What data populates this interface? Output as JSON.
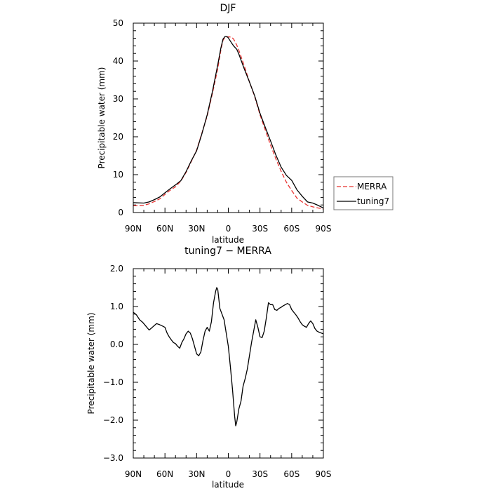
{
  "colors": {
    "background": "#ffffff",
    "axes": "#000000",
    "merra": "#e8312f",
    "tuning7": "#000000"
  },
  "chart_data": [
    {
      "type": "line",
      "title": "DJF",
      "xlabel": "latitude",
      "ylabel": "Precipitable water (mm)",
      "xlim": [
        -90,
        90
      ],
      "ylim": [
        0,
        50
      ],
      "x_ticks": [
        {
          "value": -90,
          "label": "90N"
        },
        {
          "value": -60,
          "label": "60N"
        },
        {
          "value": -30,
          "label": "30N"
        },
        {
          "value": 0,
          "label": "0"
        },
        {
          "value": 30,
          "label": "30S"
        },
        {
          "value": 60,
          "label": "60S"
        },
        {
          "value": 90,
          "label": "90S"
        }
      ],
      "y_ticks": [
        {
          "value": 0,
          "label": "0"
        },
        {
          "value": 10,
          "label": "10"
        },
        {
          "value": 20,
          "label": "20"
        },
        {
          "value": 30,
          "label": "30"
        },
        {
          "value": 40,
          "label": "40"
        },
        {
          "value": 50,
          "label": "50"
        }
      ],
      "legend": {
        "placement": "right",
        "entries": [
          "MERRA",
          "tuning7"
        ]
      },
      "series": [
        {
          "name": "MERRA",
          "color": "#e8312f",
          "dash": true,
          "x": [
            -90,
            -80,
            -75,
            -70,
            -65,
            -60,
            -55,
            -50,
            -45,
            -40,
            -35,
            -30,
            -25,
            -20,
            -15,
            -10,
            -7,
            -5,
            -3,
            0,
            3,
            5,
            8,
            10,
            15,
            20,
            25,
            30,
            35,
            40,
            45,
            50,
            55,
            60,
            65,
            70,
            75,
            80,
            85,
            90
          ],
          "y": [
            1.8,
            1.9,
            2.3,
            2.9,
            3.6,
            4.8,
            5.9,
            6.8,
            8.3,
            10.6,
            13.5,
            16.5,
            21.0,
            25.5,
            31.5,
            38.0,
            43.0,
            45.5,
            46.3,
            46.4,
            46.3,
            45.8,
            44.2,
            42.8,
            38.8,
            34.5,
            30.6,
            25.8,
            21.8,
            17.8,
            14.2,
            10.9,
            8.0,
            5.8,
            3.8,
            2.8,
            1.9,
            1.5,
            1.2,
            0.9
          ]
        },
        {
          "name": "tuning7",
          "color": "#000000",
          "dash": false,
          "x": [
            -90,
            -80,
            -75,
            -70,
            -65,
            -60,
            -55,
            -50,
            -45,
            -40,
            -35,
            -30,
            -25,
            -20,
            -15,
            -10,
            -7,
            -5,
            -3,
            -1,
            0,
            3,
            5,
            8,
            10,
            15,
            20,
            25,
            30,
            35,
            40,
            45,
            50,
            55,
            60,
            65,
            70,
            75,
            80,
            85,
            90
          ],
          "y": [
            2.6,
            2.5,
            2.8,
            3.4,
            4.1,
            5.2,
            6.3,
            7.3,
            8.4,
            10.8,
            13.7,
            16.3,
            20.8,
            25.8,
            32.0,
            39.0,
            43.5,
            45.8,
            46.5,
            46.4,
            46.1,
            44.8,
            44.0,
            43.1,
            41.8,
            38.0,
            34.5,
            30.8,
            26.2,
            22.5,
            18.9,
            15.2,
            12.0,
            9.8,
            8.5,
            6.0,
            4.3,
            2.8,
            2.5,
            1.9,
            1.2
          ]
        }
      ]
    },
    {
      "type": "line",
      "title": "tuning7 − MERRA",
      "xlabel": "latitude",
      "ylabel": "Precipitable water (mm)",
      "xlim": [
        -90,
        90
      ],
      "ylim": [
        -3.0,
        2.0
      ],
      "x_ticks": [
        {
          "value": -90,
          "label": "90N"
        },
        {
          "value": -60,
          "label": "60N"
        },
        {
          "value": -30,
          "label": "30N"
        },
        {
          "value": 0,
          "label": "0"
        },
        {
          "value": 30,
          "label": "30S"
        },
        {
          "value": 60,
          "label": "60S"
        },
        {
          "value": 90,
          "label": "90S"
        }
      ],
      "y_ticks": [
        {
          "value": -3.0,
          "label": "−3.0"
        },
        {
          "value": -2.0,
          "label": "−2.0"
        },
        {
          "value": -1.0,
          "label": "−1.0"
        },
        {
          "value": 0.0,
          "label": "0.0"
        },
        {
          "value": 1.0,
          "label": "1.0"
        },
        {
          "value": 2.0,
          "label": "2.0"
        }
      ],
      "series": [
        {
          "name": "tuning7 − MERRA",
          "color": "#000000",
          "dash": false,
          "x": [
            -90,
            -87,
            -84,
            -81,
            -78,
            -75,
            -72,
            -70,
            -68,
            -65,
            -62,
            -60,
            -58,
            -56,
            -54,
            -52,
            -50,
            -48,
            -46,
            -44,
            -42,
            -40,
            -38,
            -36,
            -34,
            -32,
            -30,
            -28,
            -26,
            -24,
            -22,
            -20,
            -18,
            -16,
            -14,
            -12,
            -11,
            -10,
            -9,
            -8,
            -6,
            -4,
            -2,
            0,
            2,
            4,
            6,
            7,
            8,
            10,
            12,
            14,
            16,
            18,
            20,
            22,
            24,
            26,
            28,
            30,
            32,
            34,
            36,
            38,
            40,
            42,
            44,
            46,
            48,
            50,
            52,
            54,
            56,
            58,
            60,
            62,
            64,
            66,
            68,
            70,
            72,
            74,
            76,
            78,
            80,
            82,
            84,
            86,
            88,
            90
          ],
          "y": [
            0.85,
            0.78,
            0.65,
            0.58,
            0.48,
            0.38,
            0.45,
            0.5,
            0.55,
            0.52,
            0.48,
            0.45,
            0.3,
            0.2,
            0.12,
            0.05,
            0.02,
            -0.05,
            -0.1,
            0.05,
            0.15,
            0.28,
            0.35,
            0.3,
            0.15,
            -0.05,
            -0.25,
            -0.3,
            -0.2,
            0.1,
            0.35,
            0.45,
            0.35,
            0.6,
            1.1,
            1.4,
            1.5,
            1.45,
            1.2,
            0.95,
            0.8,
            0.65,
            0.3,
            -0.05,
            -0.6,
            -1.2,
            -1.9,
            -2.15,
            -2.05,
            -1.7,
            -1.5,
            -1.1,
            -0.9,
            -0.65,
            -0.3,
            0.05,
            0.35,
            0.65,
            0.45,
            0.2,
            0.18,
            0.35,
            0.7,
            1.1,
            1.05,
            1.05,
            0.92,
            0.9,
            0.95,
            0.98,
            1.02,
            1.05,
            1.08,
            1.05,
            0.92,
            0.85,
            0.78,
            0.7,
            0.6,
            0.52,
            0.48,
            0.45,
            0.55,
            0.62,
            0.55,
            0.42,
            0.35,
            0.32,
            0.3,
            0.28
          ]
        }
      ]
    }
  ]
}
